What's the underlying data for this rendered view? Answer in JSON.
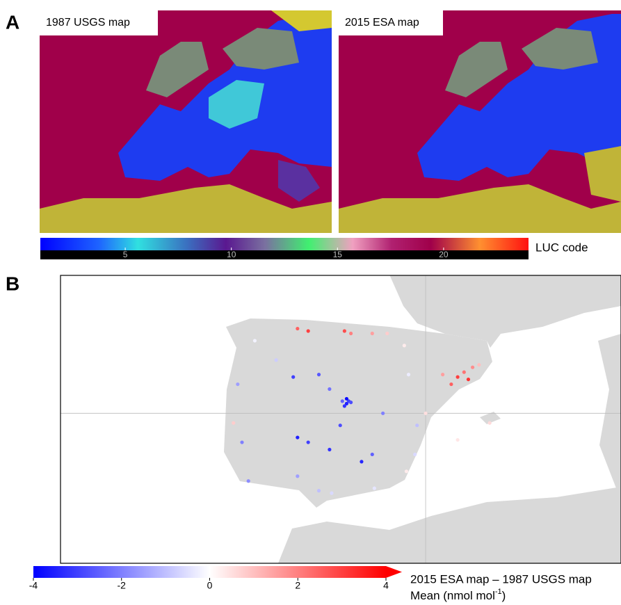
{
  "panel_a": {
    "label": "A",
    "maps": [
      "1987 USGS map",
      "2015 ESA map"
    ],
    "colorbar": {
      "label": "LUC code",
      "lim": [
        1,
        24
      ],
      "ticks": [
        5,
        10,
        15,
        20
      ]
    }
  },
  "panel_b": {
    "label": "B",
    "title": "2015 ESA map – 1987 USGS map",
    "colorbar_label": [
      "Mean (nmol mol",
      "-1",
      ")"
    ],
    "colorbar": {
      "lim": [
        -4,
        4
      ],
      "ticks": [
        -4,
        -2,
        0,
        2,
        4
      ]
    },
    "map": {
      "xlim": [
        -17.1,
        9.15
      ],
      "ylim": [
        33.8,
        45.7
      ],
      "xticks": [
        0
      ],
      "yticks": [
        40
      ],
      "stations": {
        "lon": [
          -6,
          -5.5,
          -3.8,
          -3.5,
          -2.5,
          -1.8,
          1.2,
          1.5,
          2,
          1.8,
          2.2,
          0.8,
          2.5,
          -3.7,
          -3.6,
          -3.8,
          -3.5,
          -3.9,
          -3.7,
          -6,
          -5.5,
          -4.5,
          -4,
          -6.2,
          -5,
          -3,
          -2.5,
          -4.5,
          -2,
          -8.8,
          -8.6,
          -8.3,
          -9,
          -6,
          -5,
          -4.4,
          -2.4,
          -0.4,
          -0.5,
          -0.9,
          0,
          -0.8,
          1.5,
          3,
          -1,
          -8,
          -7
        ],
        "lat": [
          43.5,
          43.4,
          43.4,
          43.3,
          43.3,
          43.3,
          41.2,
          41.5,
          41.4,
          41.7,
          41.9,
          41.6,
          42,
          40.4,
          40.5,
          40.3,
          40.45,
          40.5,
          40.6,
          39,
          38.8,
          38.5,
          39.5,
          41.5,
          41.6,
          38,
          38.3,
          41,
          40,
          41.2,
          38.8,
          37.2,
          39.6,
          37.4,
          36.8,
          36.7,
          36.9,
          39.5,
          38.3,
          37.6,
          40,
          41.6,
          38.9,
          39.6,
          42.8,
          43,
          42.2
        ],
        "values": [
          2.5,
          3,
          2.8,
          2,
          1.5,
          0.8,
          2.5,
          3,
          3.2,
          2.2,
          1.8,
          1.5,
          1,
          -3.5,
          -3,
          -3.2,
          -2.8,
          -2.5,
          -3.8,
          -3.5,
          -3,
          -3.2,
          -2.8,
          -3,
          -2.6,
          -3.4,
          -2.5,
          -2.2,
          -2,
          -1.5,
          -2,
          -1.8,
          0.8,
          -1.5,
          -1,
          -0.6,
          -0.4,
          -1,
          -0.6,
          0.3,
          0.5,
          -0.3,
          0.4,
          0.6,
          0.3,
          -0.2,
          -0.8
        ]
      }
    }
  }
}
